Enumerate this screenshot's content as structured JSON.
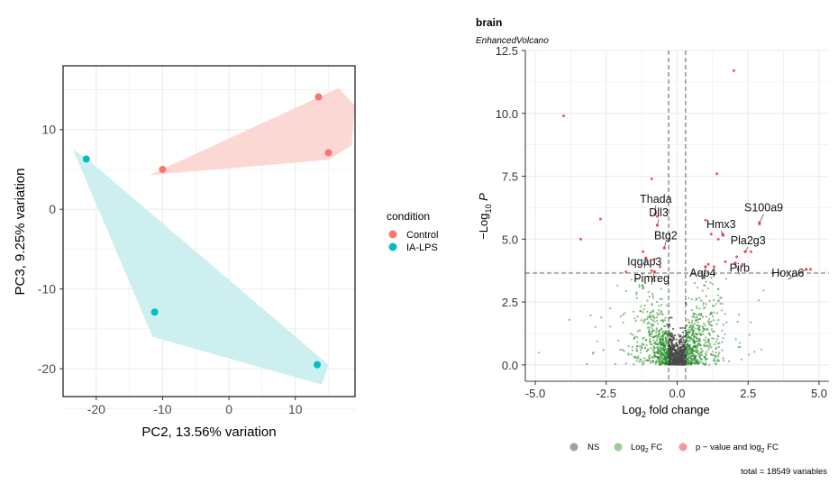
{
  "chart_data": [
    {
      "type": "scatter",
      "title": "",
      "xlabel": "PC2, 13.56% variation",
      "ylabel": "PC3, 9.25% variation",
      "xlim": [
        -25,
        19
      ],
      "ylim": [
        -23.5,
        18
      ],
      "x_ticks": [
        -20,
        -10,
        0,
        10
      ],
      "y_ticks": [
        -20,
        -10,
        0,
        10
      ],
      "grid": true,
      "legend": {
        "title": "condition",
        "placement": "right",
        "entries": [
          {
            "label": "Control",
            "color": "#F8766D"
          },
          {
            "label": "IA-LPS",
            "color": "#00BFC4"
          }
        ]
      },
      "series": [
        {
          "name": "Control",
          "color": "#F8766D",
          "fill": "#FCD8D5",
          "x": [
            13.5,
            15.0,
            -10.0
          ],
          "y": [
            14.1,
            7.1,
            5.0
          ],
          "hull": [
            [
              -12,
              4.3
            ],
            [
              16.5,
              15.2
            ],
            [
              19,
              13
            ],
            [
              18.5,
              8
            ],
            [
              15,
              6.2
            ],
            [
              -12,
              4.3
            ]
          ]
        },
        {
          "name": "IA-LPS",
          "color": "#00BFC4",
          "fill": "#CDEFF0",
          "x": [
            -21.5,
            -11.2,
            13.3
          ],
          "y": [
            6.3,
            -12.9,
            -19.5
          ],
          "hull": [
            [
              -23.5,
              7.5
            ],
            [
              -21.2,
              6.2
            ],
            [
              15,
              -19.5
            ],
            [
              14,
              -22
            ],
            [
              -11.5,
              -16
            ],
            [
              -23.5,
              7.5
            ]
          ]
        }
      ]
    },
    {
      "type": "scatter",
      "title": "brain",
      "subtitle": "EnhancedVolcano",
      "xlabel": "Log2 fold change",
      "ylabel": "-Log10 P",
      "xlim": [
        -5.35,
        5.35
      ],
      "ylim": [
        -0.65,
        12.5
      ],
      "x_ticks": [
        "-5.0",
        "-2.5",
        "0.0",
        "2.5",
        "5.0"
      ],
      "y_ticks": [
        "0.0",
        "2.5",
        "5.0",
        "7.5",
        "10.0",
        "12.5"
      ],
      "grid": true,
      "fc_cutoff": [
        -0.3,
        0.3
      ],
      "p_cutoff": 3.65,
      "legend": {
        "placement": "bottom",
        "entries": [
          {
            "label": "NS",
            "color": "#808080"
          },
          {
            "label": "Log2 FC",
            "color": "#228B22"
          },
          {
            "label": "p - value and log2 FC",
            "color": "#E8474F"
          }
        ]
      },
      "caption": "total = 18549 variables",
      "significant_points": [
        [
          2.0,
          11.7
        ],
        [
          -4.0,
          9.9
        ],
        [
          -0.9,
          7.4
        ],
        [
          1.4,
          7.6
        ],
        [
          -3.4,
          5.0
        ],
        [
          -2.7,
          5.8
        ],
        [
          1.2,
          5.2
        ],
        [
          1.6,
          5.2
        ],
        [
          1.45,
          5.0
        ],
        [
          2.9,
          5.6
        ],
        [
          2.6,
          4.5
        ],
        [
          2.1,
          4.3
        ],
        [
          4.7,
          3.8
        ],
        [
          1.7,
          4.1
        ],
        [
          1.3,
          3.9
        ],
        [
          1.1,
          4.0
        ],
        [
          -1.2,
          4.5
        ],
        [
          -0.8,
          4.2
        ],
        [
          -1.8,
          3.7
        ],
        [
          -0.6,
          3.9
        ],
        [
          -0.9,
          3.75
        ],
        [
          -0.7,
          5.9
        ],
        [
          1.0,
          5.75
        ],
        [
          2.3,
          4.0
        ]
      ],
      "labels": [
        {
          "text": "Thada",
          "x": -0.75,
          "y": 6.45,
          "px": -0.78,
          "py": 6.0
        },
        {
          "text": "Dll3",
          "x": -0.65,
          "y": 5.9,
          "px": -0.7,
          "py": 5.55
        },
        {
          "text": "S100a9",
          "x": 3.05,
          "y": 6.1,
          "px": 2.9,
          "py": 5.65
        },
        {
          "text": "Hmx3",
          "x": 1.55,
          "y": 5.45,
          "px": 1.62,
          "py": 5.15
        },
        {
          "text": "Btg2",
          "x": -0.4,
          "y": 5.0,
          "px": -0.45,
          "py": 4.65
        },
        {
          "text": "Pla2g3",
          "x": 2.5,
          "y": 4.8,
          "px": 2.4,
          "py": 4.5
        },
        {
          "text": "Iqgap3",
          "x": -1.15,
          "y": 3.95,
          "px": -1.1,
          "py": 4.25
        },
        {
          "text": "Pirb",
          "x": 2.2,
          "y": 3.7,
          "px": 2.05,
          "py": 4.05
        },
        {
          "text": "Aqp4",
          "x": 0.9,
          "y": 3.5,
          "px": 1.0,
          "py": 3.9
        },
        {
          "text": "Hoxa6",
          "x": 3.9,
          "y": 3.5,
          "px": 4.55,
          "py": 3.8
        },
        {
          "text": "Pimreg",
          "x": -0.9,
          "y": 3.3,
          "px": -0.8,
          "py": 3.7
        }
      ]
    }
  ]
}
